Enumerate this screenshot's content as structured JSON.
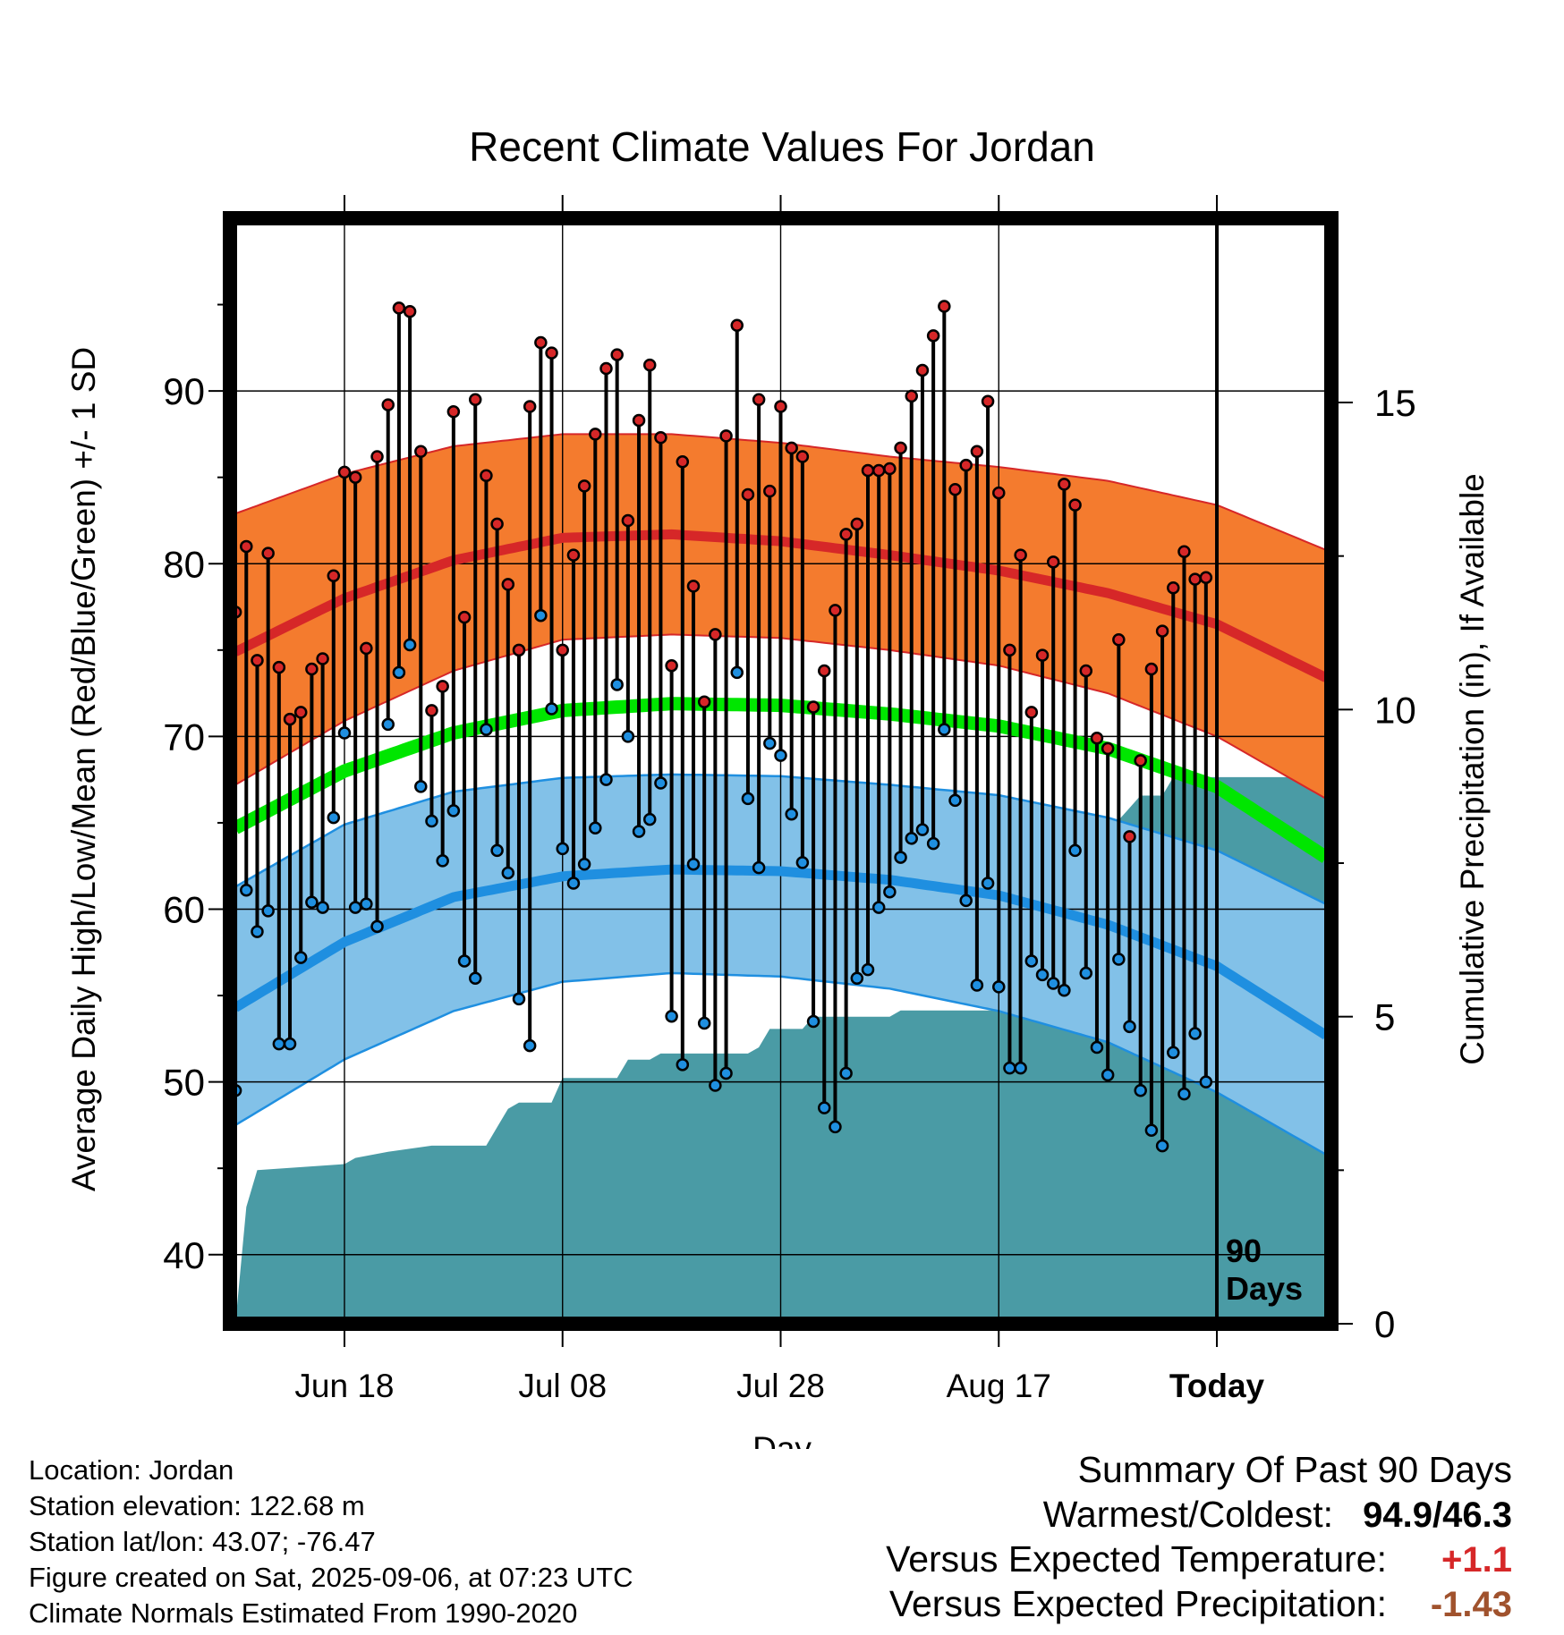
{
  "chart_data": {
    "type": "line",
    "title": "Recent Climate Values For Jordan",
    "xlabel": "Day",
    "ylabel": "Average Daily High/Low/Mean (Red/Blue/Green) +/- 1 SD",
    "y2label": "Cumulative Precipitation (in), If Available",
    "ylim": [
      36,
      100
    ],
    "y2lim": [
      0,
      18
    ],
    "yticks": [
      40,
      50,
      60,
      70,
      80,
      90
    ],
    "y2ticks": [
      0,
      5,
      10,
      15
    ],
    "xticks": [
      "Jun 18",
      "Jul 08",
      "Jul 28",
      "Aug 17",
      "Today"
    ],
    "xtick_days": [
      11,
      31,
      51,
      71,
      91
    ],
    "today_label": "90 Days",
    "grid": true,
    "normals": {
      "days": [
        1,
        11,
        21,
        31,
        41,
        51,
        61,
        71,
        81,
        91,
        101
      ],
      "high_mean": [
        74.9,
        78.0,
        80.2,
        81.5,
        81.7,
        81.3,
        80.5,
        79.6,
        78.3,
        76.5,
        73.4
      ],
      "high_upper": [
        82.9,
        85.2,
        86.8,
        87.5,
        87.5,
        87.0,
        86.2,
        85.6,
        84.8,
        83.4,
        80.8
      ],
      "high_lower": [
        67.2,
        70.9,
        73.8,
        75.6,
        75.9,
        75.7,
        75.0,
        74.1,
        72.5,
        70.0,
        66.4
      ],
      "mean": [
        64.7,
        68.0,
        70.2,
        71.5,
        71.9,
        71.8,
        71.3,
        70.6,
        69.3,
        67.1,
        63.0
      ],
      "low_mean": [
        54.3,
        58.1,
        60.7,
        61.9,
        62.3,
        62.2,
        61.7,
        60.8,
        59.1,
        56.7,
        52.7
      ],
      "low_upper": [
        61.3,
        64.9,
        66.8,
        67.6,
        67.8,
        67.7,
        67.2,
        66.6,
        65.3,
        63.4,
        60.3
      ],
      "low_lower": [
        47.5,
        51.3,
        54.1,
        55.8,
        56.3,
        56.1,
        55.4,
        54.1,
        52.3,
        49.4,
        45.8
      ]
    },
    "series": [
      {
        "name": "High",
        "color": "#d62728",
        "values": [
          77.2,
          81.0,
          74.4,
          80.6,
          74.0,
          71.0,
          71.4,
          73.9,
          74.5,
          79.3,
          85.3,
          85.0,
          75.1,
          86.2,
          89.2,
          94.8,
          94.6,
          86.5,
          71.5,
          72.9,
          88.8,
          76.9,
          89.5,
          85.1,
          82.3,
          78.8,
          75.0,
          89.1,
          92.8,
          92.2,
          75.0,
          80.5,
          84.5,
          87.5,
          91.3,
          92.1,
          82.5,
          88.3,
          91.5,
          87.3,
          74.1,
          85.9,
          78.7,
          72.0,
          75.9,
          87.4,
          93.8,
          84.0,
          89.5,
          84.2,
          89.1,
          86.7,
          86.2,
          71.7,
          73.8,
          77.3,
          81.7,
          82.3,
          85.4,
          85.4,
          85.5,
          86.7,
          89.7,
          91.2,
          93.2,
          94.9,
          84.3,
          85.7,
          86.5,
          89.4,
          84.1,
          75.0,
          80.5,
          71.4,
          74.7,
          80.1,
          84.6,
          83.4,
          73.8,
          69.9,
          69.3,
          75.6,
          64.2,
          68.6,
          73.9,
          76.1,
          78.6,
          80.7,
          79.1,
          79.2
        ]
      },
      {
        "name": "Low",
        "color": "#1f8fe0",
        "values": [
          49.5,
          61.1,
          58.7,
          59.9,
          52.2,
          52.2,
          57.2,
          60.4,
          60.1,
          65.3,
          70.2,
          60.1,
          60.3,
          59.0,
          70.7,
          73.7,
          75.3,
          67.1,
          65.1,
          62.8,
          65.7,
          57.0,
          56.0,
          70.4,
          63.4,
          62.1,
          54.8,
          52.1,
          77.0,
          71.6,
          63.5,
          61.5,
          62.6,
          64.7,
          67.5,
          73.0,
          70.0,
          64.5,
          65.2,
          67.3,
          53.8,
          51.0,
          62.6,
          53.4,
          49.8,
          50.5,
          73.7,
          66.4,
          62.4,
          69.6,
          68.9,
          65.5,
          62.7,
          53.5,
          48.5,
          47.4,
          50.5,
          56.0,
          56.5,
          60.1,
          61.0,
          63.0,
          64.1,
          64.6,
          63.8,
          70.4,
          66.3,
          60.5,
          55.6,
          61.5,
          55.5,
          50.8,
          50.8,
          57.0,
          56.2,
          55.7,
          55.3,
          63.4,
          56.3,
          52.0,
          50.4,
          57.1,
          53.2,
          49.5,
          47.2,
          46.3,
          51.7,
          49.3,
          52.8,
          50.0
        ]
      },
      {
        "name": "Cumulative Precipitation",
        "color": "#4a9ba5",
        "steps": [
          [
            1,
            0
          ],
          [
            2,
            1.9
          ],
          [
            3,
            2.5
          ],
          [
            11,
            2.6
          ],
          [
            12,
            2.7
          ],
          [
            15,
            2.8
          ],
          [
            19,
            2.9
          ],
          [
            24,
            2.9
          ],
          [
            25,
            3.2
          ],
          [
            26,
            3.5
          ],
          [
            27,
            3.6
          ],
          [
            30,
            3.6
          ],
          [
            31,
            4.0
          ],
          [
            36,
            4.0
          ],
          [
            37,
            4.3
          ],
          [
            39,
            4.3
          ],
          [
            40,
            4.4
          ],
          [
            48,
            4.4
          ],
          [
            49,
            4.5
          ],
          [
            50,
            4.8
          ],
          [
            53,
            4.8
          ],
          [
            54,
            5.0
          ],
          [
            61,
            5.0
          ],
          [
            62,
            5.1
          ],
          [
            72,
            5.1
          ],
          [
            73,
            5.2
          ],
          [
            75,
            5.2
          ],
          [
            76,
            6.6
          ],
          [
            79,
            6.6
          ],
          [
            80,
            7.8
          ],
          [
            82,
            8.2
          ],
          [
            83,
            8.4
          ],
          [
            84,
            8.6
          ],
          [
            86,
            8.6
          ],
          [
            87,
            8.9
          ],
          [
            101,
            8.9
          ]
        ]
      }
    ]
  },
  "footer": {
    "location": "Location: Jordan",
    "elevation": "Station elevation: 122.68 m",
    "latlon": "Station lat/lon: 43.07; -76.47",
    "created": "Figure created on Sat, 2025-09-06, at 07:23 UTC",
    "normals": "Climate Normals Estimated From 1990-2020"
  },
  "summary": {
    "title": "Summary Of Past 90 Days",
    "warmcold_label": "Warmest/Coldest:",
    "warmcold_value": "94.9/46.3",
    "temp_label": "Versus Expected Temperature:",
    "temp_value": "+1.1",
    "temp_color": "#d62728",
    "precip_label": "Versus Expected Precipitation:",
    "precip_value": "-1.43",
    "precip_color": "#a0522d"
  },
  "colors": {
    "high_band": "#f47b2e",
    "high_line": "#d62728",
    "mean_line": "#00e600",
    "low_band": "#82c1e8",
    "low_line": "#1f8fe0",
    "precip_fill": "#4a9ba5"
  }
}
